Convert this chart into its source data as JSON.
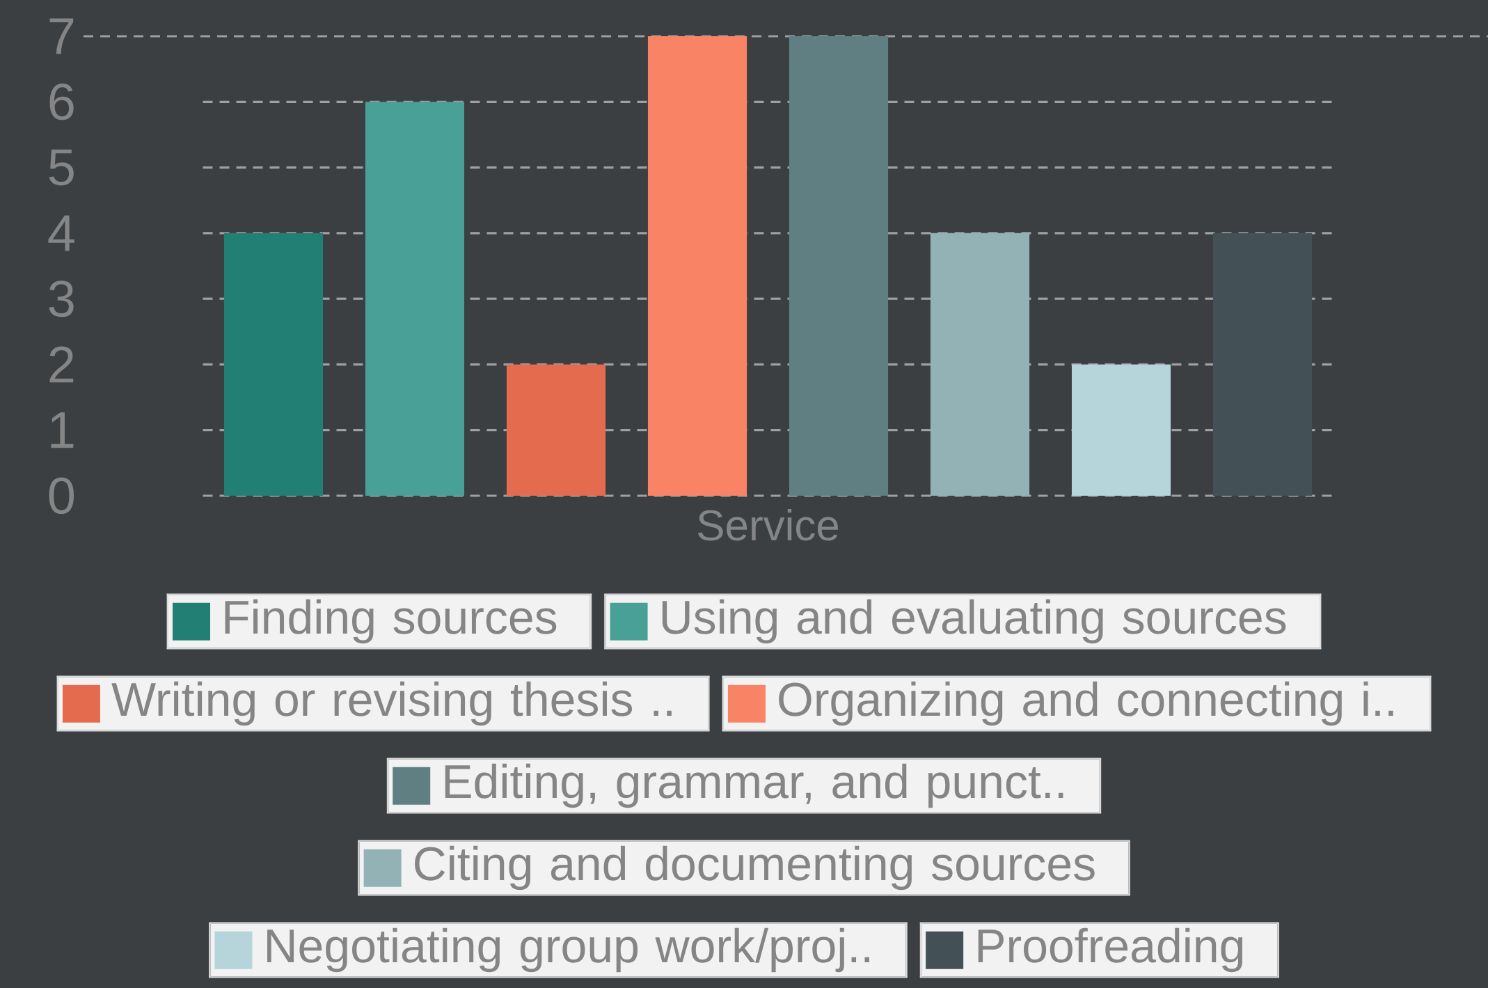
{
  "chart_data": {
    "type": "bar",
    "xlabel": "Service",
    "categories": [
      null,
      null,
      null,
      null,
      null,
      null,
      null,
      null
    ],
    "series": [
      {
        "name": "Finding sources",
        "color": "#217f74",
        "values": [
          4,
          null,
          null,
          null,
          null,
          null,
          null,
          null
        ]
      },
      {
        "name": "Using and evaluating sources",
        "color": "#48a096",
        "values": [
          null,
          6,
          null,
          null,
          null,
          null,
          null,
          null
        ]
      },
      {
        "name": "Writing or revising thesis ..",
        "color": "#e46b4d",
        "values": [
          null,
          null,
          2,
          null,
          null,
          null,
          null,
          null
        ]
      },
      {
        "name": "Organizing and connecting i..",
        "color": "#f98365",
        "values": [
          null,
          null,
          null,
          7,
          null,
          null,
          null,
          null
        ]
      },
      {
        "name": "Editing, grammar, and punct..",
        "color": "#5f7f82",
        "values": [
          null,
          null,
          null,
          null,
          7,
          null,
          null,
          null
        ]
      },
      {
        "name": "Citing and documenting sources",
        "color": "#93b2b6",
        "values": [
          null,
          null,
          null,
          null,
          null,
          4,
          null,
          null
        ]
      },
      {
        "name": "Negotiating group work/proj..",
        "color": "#b5d5da",
        "values": [
          null,
          null,
          null,
          null,
          null,
          null,
          2,
          null
        ]
      },
      {
        "name": "Proofreading",
        "color": "#435156",
        "values": [
          null,
          null,
          null,
          null,
          null,
          null,
          null,
          4
        ]
      }
    ],
    "ylim": [
      0,
      7
    ],
    "yticks": [
      0,
      1,
      2,
      3,
      4,
      5,
      6,
      7
    ],
    "grid": "y",
    "legend": "bottom",
    "tick_labels": "y"
  }
}
